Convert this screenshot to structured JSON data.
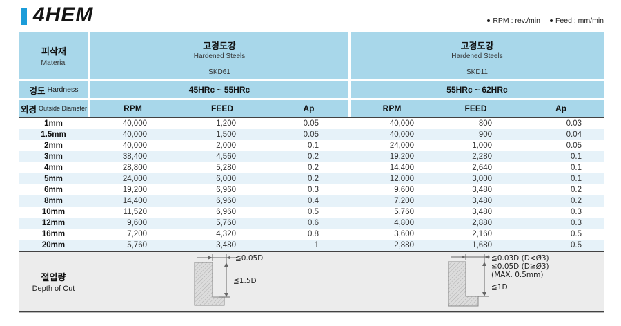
{
  "title": "4HEM",
  "legend": {
    "items": [
      {
        "label": "RPM : rev./min"
      },
      {
        "label": "Feed : mm/min"
      }
    ]
  },
  "table": {
    "material_header": {
      "ko": "피삭재",
      "en": "Material"
    },
    "hardness_label": {
      "ko": "경도",
      "en": "Hardness"
    },
    "diameter_label": {
      "ko": "외경",
      "en": "Outside Diameter"
    },
    "groups": [
      {
        "material_ko": "고경도강",
        "material_en": "Hardened Steels",
        "grade": "SKD61",
        "hardness": "45HRc ~ 55HRc"
      },
      {
        "material_ko": "고경도강",
        "material_en": "Hardened Steels",
        "grade": "SKD11",
        "hardness": "55HRc ~ 62HRc"
      }
    ],
    "columns": {
      "rpm": "RPM",
      "feed": "FEED",
      "ap": "Ap"
    },
    "rows": [
      [
        "1mm",
        "40,000",
        "1,200",
        "0.05",
        "40,000",
        "800",
        "0.03"
      ],
      [
        "1.5mm",
        "40,000",
        "1,500",
        "0.05",
        "40,000",
        "900",
        "0.04"
      ],
      [
        "2mm",
        "40,000",
        "2,000",
        "0.1",
        "24,000",
        "1,000",
        "0.05"
      ],
      [
        "3mm",
        "38,400",
        "4,560",
        "0.2",
        "19,200",
        "2,280",
        "0.1"
      ],
      [
        "4mm",
        "28,800",
        "5,280",
        "0.2",
        "14,400",
        "2,640",
        "0.1"
      ],
      [
        "5mm",
        "24,000",
        "6,000",
        "0.2",
        "12,000",
        "3,000",
        "0.1"
      ],
      [
        "6mm",
        "19,200",
        "6,960",
        "0.3",
        "9,600",
        "3,480",
        "0.2"
      ],
      [
        "8mm",
        "14,400",
        "6,960",
        "0.4",
        "7,200",
        "3,480",
        "0.2"
      ],
      [
        "10mm",
        "11,520",
        "6,960",
        "0.5",
        "5,760",
        "3,480",
        "0.3"
      ],
      [
        "12mm",
        "9,600",
        "5,760",
        "0.6",
        "4,800",
        "2,880",
        "0.3"
      ],
      [
        "16mm",
        "7,200",
        "4,320",
        "0.8",
        "3,600",
        "2,160",
        "0.5"
      ],
      [
        "20mm",
        "5,760",
        "3,480",
        "1",
        "2,880",
        "1,680",
        "0.5"
      ]
    ],
    "depth_of_cut": {
      "label_ko": "절입량",
      "label_en": "Depth of Cut",
      "left": {
        "radial": "≦0.05D",
        "axial": "≦1.5D"
      },
      "right": {
        "radial1": "≦0.03D (D<Ø3)",
        "radial2": "≦0.05D (D≧Ø3)",
        "radial3": "(MAX. 0.5mm)",
        "axial": "≦1D"
      }
    }
  },
  "colors": {
    "accent": "#1b9cd9",
    "header_bg": "#a8d7ea",
    "stripe_bg": "#e6f2f9",
    "section_bg": "#ececec",
    "border_dark": "#424242",
    "border_light": "#b5b5b5"
  }
}
